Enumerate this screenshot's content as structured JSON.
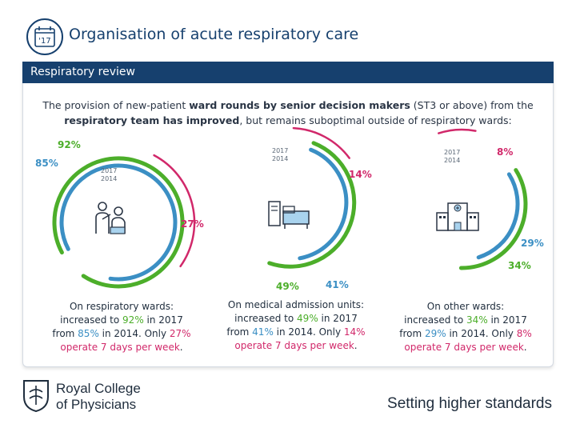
{
  "badge": {
    "year": "'17"
  },
  "title": "Organisation of acute respiratory care",
  "panel": {
    "header": "Respiratory review",
    "intro_before": "The provision of new-patient ",
    "intro_bold1": "ward rounds by senior decision makers",
    "intro_mid": " (ST3 or above) from the ",
    "intro_bold2": "respiratory team has improved",
    "intro_after": ", but remains suboptimal outside of respiratory wards:"
  },
  "legend_years": {
    "y2017": "2017",
    "y2014": "2014"
  },
  "colors": {
    "year2017": "#4cae2a",
    "year2014": "#3b8fc4",
    "seven_day": "#d1286a"
  },
  "chart_data": {
    "type": "radial-bar",
    "series": [
      {
        "name": "2017",
        "color": "#4cae2a"
      },
      {
        "name": "2014",
        "color": "#3b8fc4"
      },
      {
        "name": "7 days per week",
        "color": "#d1286a"
      }
    ],
    "groups": [
      {
        "id": "respiratory-wards",
        "icon": "doctor-patient-icon",
        "v2017": 92,
        "v2014": 85,
        "seven_day": 27,
        "labels": {
          "v2017": "92%",
          "v2014": "85%",
          "seven_day": "27%"
        },
        "caption": {
          "line1": "On respiratory wards:",
          "inc_pre": "increased to ",
          "v2017": "92%",
          "inc_post": " in 2017",
          "from_pre": "from ",
          "v2014": "85%",
          "from_post": " in 2014. Only ",
          "seven_day": "27%",
          "tail": "operate 7 days per week",
          "end": "."
        }
      },
      {
        "id": "medical-admission-units",
        "icon": "hospital-beds-icon",
        "v2017": 49,
        "v2014": 41,
        "seven_day": 14,
        "labels": {
          "v2017": "49%",
          "v2014": "41%",
          "seven_day": "14%"
        },
        "caption": {
          "line1": "On medical admission units:",
          "inc_pre": "increased to ",
          "v2017": "49%",
          "inc_post": " in 2017",
          "from_pre": "from ",
          "v2014": "41%",
          "from_post": " in 2014. Only ",
          "seven_day": "14%",
          "tail": "operate 7 days per week",
          "end": "."
        }
      },
      {
        "id": "other-wards",
        "icon": "hospital-building-icon",
        "v2017": 34,
        "v2014": 29,
        "seven_day": 8,
        "labels": {
          "v2017": "34%",
          "v2014": "29%",
          "seven_day": "8%"
        },
        "caption": {
          "line1": "On other wards:",
          "inc_pre": "increased to ",
          "v2017": "34%",
          "inc_post": " in 2017",
          "from_pre": "from ",
          "v2014": "29%",
          "from_post": " in 2014. Only ",
          "seven_day": "8%",
          "tail": "operate 7 days per week",
          "end": "."
        }
      }
    ]
  },
  "footer": {
    "org_line1": "Royal College",
    "org_line2": "of Physicians",
    "tagline": "Setting higher standards"
  }
}
